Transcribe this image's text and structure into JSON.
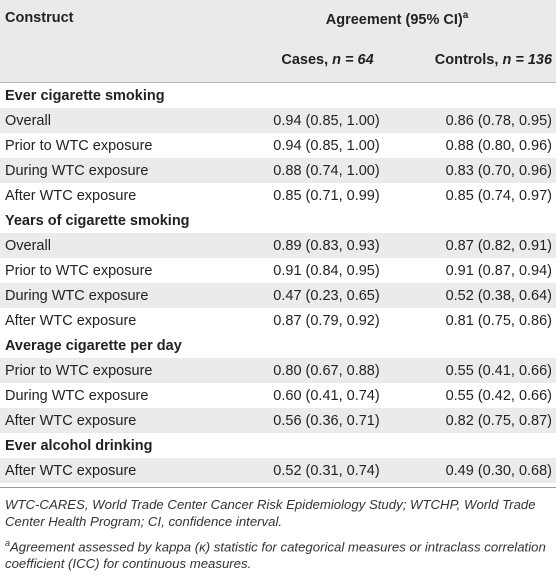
{
  "header": {
    "construct": "Construct",
    "agreement": "Agreement (95% CI)",
    "agreement_sup": "a",
    "cases_label": "Cases,",
    "cases_n": "n = 64",
    "controls_label": "Controls,",
    "controls_n": "n = 136"
  },
  "sections": [
    {
      "title": "Ever cigarette smoking",
      "rows": [
        {
          "label": "Overall",
          "cases": "0.94 (0.85, 1.00)",
          "controls": "0.86 (0.78, 0.95)"
        },
        {
          "label": "Prior to WTC exposure",
          "cases": "0.94 (0.85, 1.00)",
          "controls": "0.88 (0.80, 0.96)"
        },
        {
          "label": "During WTC exposure",
          "cases": "0.88 (0.74, 1.00)",
          "controls": "0.83 (0.70, 0.96)"
        },
        {
          "label": "After WTC exposure",
          "cases": "0.85 (0.71, 0.99)",
          "controls": "0.85 (0.74, 0.97)"
        }
      ]
    },
    {
      "title": "Years of cigarette smoking",
      "rows": [
        {
          "label": "Overall",
          "cases": "0.89 (0.83, 0.93)",
          "controls": "0.87 (0.82, 0.91)"
        },
        {
          "label": "Prior to WTC exposure",
          "cases": "0.91 (0.84, 0.95)",
          "controls": "0.91 (0.87, 0.94)"
        },
        {
          "label": "During WTC exposure",
          "cases": "0.47 (0.23, 0.65)",
          "controls": "0.52 (0.38, 0.64)"
        },
        {
          "label": "After WTC exposure",
          "cases": "0.87 (0.79, 0.92)",
          "controls": "0.81 (0.75, 0.86)"
        }
      ]
    },
    {
      "title": "Average cigarette per day",
      "rows": [
        {
          "label": "Prior to WTC exposure",
          "cases": "0.80 (0.67, 0.88)",
          "controls": "0.55 (0.41, 0.66)"
        },
        {
          "label": "During WTC exposure",
          "cases": "0.60 (0.41, 0.74)",
          "controls": "0.55 (0.42, 0.66)"
        },
        {
          "label": "After WTC exposure",
          "cases": "0.56 (0.36, 0.71)",
          "controls": "0.82 (0.75, 0.87)"
        }
      ]
    },
    {
      "title": "Ever alcohol drinking",
      "rows": [
        {
          "label": "After WTC exposure",
          "cases": "0.52 (0.31, 0.74)",
          "controls": "0.49 (0.30, 0.68)"
        }
      ]
    }
  ],
  "footnotes": {
    "abbreviations": "WTC-CARES, World Trade Center Cancer Risk Epidemiology Study; WTCHP, World Trade Center Health Program; CI, confidence interval.",
    "a_marker": "a",
    "a_text": "Agreement assessed by kappa (κ) statistic for categorical measures or intraclass correlation coefficient (ICC) for continuous measures."
  }
}
